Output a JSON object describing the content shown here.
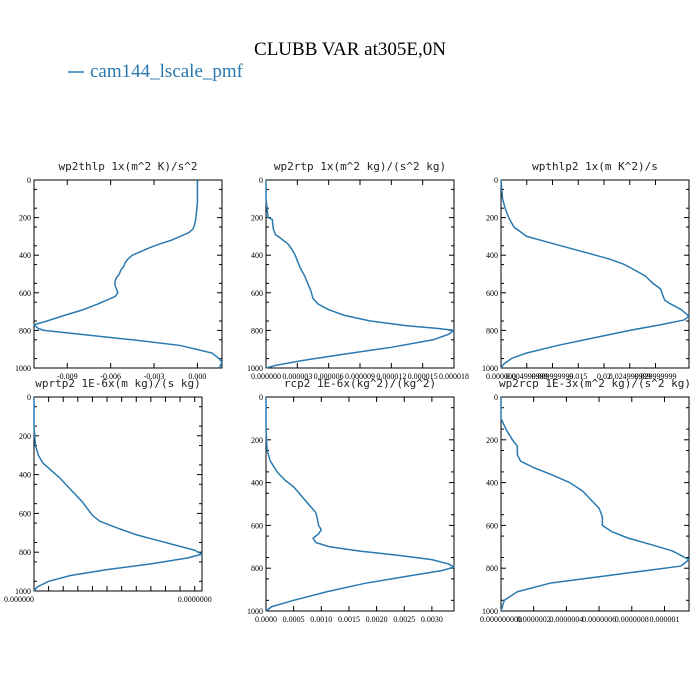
{
  "figure": {
    "title": "CLUBB VAR at305E,0N",
    "legend": [
      {
        "name": "cam144_lscale_pmf",
        "color": "#2a7ab0"
      }
    ]
  },
  "chart_data": [
    {
      "type": "line",
      "title": "wp2thlp  1x(m^2 K)/s^2",
      "xlim": [
        -0.0113,
        0.0017
      ],
      "ylim": [
        1000,
        0
      ],
      "xticks": [
        "-0.009",
        "-0.006",
        "-0.003",
        "0.000"
      ],
      "xtick_values": [
        -0.009,
        -0.006,
        -0.003,
        0.0
      ],
      "yticks": [
        "0",
        "200",
        "400",
        "600",
        "800",
        "1000"
      ],
      "series": [
        {
          "name": "cam144_lscale_pmf",
          "points": [
            [
              0.0,
              0
            ],
            [
              0.0,
              50
            ],
            [
              0.0,
              120
            ],
            [
              -0.0001,
              200
            ],
            [
              -0.0002,
              240
            ],
            [
              -0.0003,
              260
            ],
            [
              -0.0006,
              280
            ],
            [
              -0.0012,
              300
            ],
            [
              -0.0018,
              320
            ],
            [
              -0.0026,
              340
            ],
            [
              -0.0033,
              360
            ],
            [
              -0.0039,
              380
            ],
            [
              -0.0045,
              400
            ],
            [
              -0.0048,
              420
            ],
            [
              -0.005,
              440
            ],
            [
              -0.0051,
              460
            ],
            [
              -0.0053,
              480
            ],
            [
              -0.0054,
              500
            ],
            [
              -0.0056,
              520
            ],
            [
              -0.0057,
              540
            ],
            [
              -0.0057,
              560
            ],
            [
              -0.0056,
              580
            ],
            [
              -0.0055,
              600
            ],
            [
              -0.0057,
              620
            ],
            [
              -0.0063,
              640
            ],
            [
              -0.0069,
              660
            ],
            [
              -0.0079,
              690
            ],
            [
              -0.0092,
              720
            ],
            [
              -0.0104,
              750
            ],
            [
              -0.0113,
              770
            ],
            [
              -0.011,
              790
            ],
            [
              -0.0106,
              800
            ],
            [
              -0.0082,
              820
            ],
            [
              -0.0045,
              850
            ],
            [
              -0.0012,
              880
            ],
            [
              0.001,
              920
            ],
            [
              0.0015,
              950
            ],
            [
              0.0017,
              970
            ],
            [
              0.0015,
              1000
            ]
          ]
        }
      ]
    },
    {
      "type": "line",
      "title": "wp2rtp  1x(m^2 kg)/(s^2 kg)",
      "xlim": [
        0,
        1.8e-05
      ],
      "ylim": [
        1000,
        0
      ],
      "xticks": [
        "0.000000",
        "0.000003",
        "0.000006",
        "0.000009",
        "0.000012",
        "0.000015",
        "0.000018"
      ],
      "xtick_values": [
        0,
        3e-06,
        6e-06,
        9e-06,
        1.2e-05,
        1.5e-05,
        1.8e-05
      ],
      "yticks": [
        "0",
        "200",
        "400",
        "600",
        "800",
        "1000"
      ],
      "series": [
        {
          "name": "cam144_lscale_pmf",
          "points": [
            [
              0.0,
              0
            ],
            [
              0.0,
              100
            ],
            [
              2e-07,
              200
            ],
            [
              6e-07,
              210
            ],
            [
              7e-07,
              260
            ],
            [
              9e-07,
              290
            ],
            [
              1.4e-06,
              310
            ],
            [
              2.1e-06,
              340
            ],
            [
              2.5e-06,
              370
            ],
            [
              2.8e-06,
              400
            ],
            [
              3e-06,
              430
            ],
            [
              3.3e-06,
              470
            ],
            [
              3.7e-06,
              510
            ],
            [
              4e-06,
              550
            ],
            [
              4.3e-06,
              590
            ],
            [
              4.5e-06,
              630
            ],
            [
              5e-06,
              660
            ],
            [
              6e-06,
              690
            ],
            [
              7.5e-06,
              720
            ],
            [
              1e-05,
              750
            ],
            [
              1.35e-05,
              775
            ],
            [
              1.65e-05,
              790
            ],
            [
              1.8e-05,
              800
            ],
            [
              1.75e-05,
              820
            ],
            [
              1.6e-05,
              850
            ],
            [
              1.2e-05,
              890
            ],
            [
              7e-06,
              930
            ],
            [
              3.5e-06,
              960
            ],
            [
              1e-06,
              985
            ],
            [
              0.0,
              1000
            ]
          ]
        }
      ]
    },
    {
      "type": "line",
      "title": "wpthlp2  1x(m K^2)/s",
      "xlim": [
        0,
        0.0365
      ],
      "ylim": [
        1000,
        0
      ],
      "xticks": [
        "0.000000",
        "0.004999999",
        "0.009999999",
        "0.015",
        "0.02",
        "0.024999999",
        "0.029999999"
      ],
      "xtick_values": [
        0,
        0.005,
        0.01,
        0.015,
        0.02,
        0.025,
        0.03
      ],
      "yticks": [
        "0",
        "200",
        "400",
        "600",
        "800",
        "1000"
      ],
      "series": [
        {
          "name": "cam144_lscale_pmf",
          "points": [
            [
              0.0,
              0
            ],
            [
              0.0003,
              100
            ],
            [
              0.0008,
              150
            ],
            [
              0.0015,
              200
            ],
            [
              0.0025,
              250
            ],
            [
              0.005,
              300
            ],
            [
              0.009,
              330
            ],
            [
              0.013,
              360
            ],
            [
              0.017,
              390
            ],
            [
              0.021,
              420
            ],
            [
              0.024,
              450
            ],
            [
              0.026,
              480
            ],
            [
              0.028,
              510
            ],
            [
              0.0295,
              550
            ],
            [
              0.031,
              580
            ],
            [
              0.0315,
              620
            ],
            [
              0.0318,
              640
            ],
            [
              0.033,
              660
            ],
            [
              0.035,
              690
            ],
            [
              0.0365,
              725
            ],
            [
              0.0355,
              745
            ],
            [
              0.031,
              770
            ],
            [
              0.025,
              800
            ],
            [
              0.018,
              840
            ],
            [
              0.011,
              880
            ],
            [
              0.005,
              920
            ],
            [
              0.002,
              950
            ],
            [
              0.0005,
              980
            ],
            [
              0.0,
              1000
            ]
          ]
        }
      ]
    },
    {
      "type": "line",
      "title": "wprtp2  1E-6x(m kg)/(s kg)",
      "xlim": [
        0,
        1.15e-05
      ],
      "ylim": [
        1000,
        0
      ],
      "xticks": [
        "0.000000",
        "",
        "",
        "",
        "",
        "",
        "",
        "",
        "",
        "",
        "",
        "0.0000000"
      ],
      "xtick_values": [
        0,
        1e-06,
        2e-06,
        3e-06,
        4e-06,
        5e-06,
        6e-06,
        7e-06,
        8e-06,
        9e-06,
        1e-05,
        1.1e-05
      ],
      "yticks": [
        "0",
        "200",
        "400",
        "600",
        "800",
        "1000"
      ],
      "series": [
        {
          "name": "cam144_lscale_pmf",
          "points": [
            [
              0.0,
              0
            ],
            [
              0.0,
              150
            ],
            [
              1e-07,
              250
            ],
            [
              3e-07,
              300
            ],
            [
              6e-07,
              340
            ],
            [
              1.2e-06,
              380
            ],
            [
              1.8e-06,
              420
            ],
            [
              2.3e-06,
              460
            ],
            [
              2.8e-06,
              500
            ],
            [
              3.3e-06,
              540
            ],
            [
              3.7e-06,
              580
            ],
            [
              4e-06,
              610
            ],
            [
              4.5e-06,
              640
            ],
            [
              5.5e-06,
              670
            ],
            [
              7e-06,
              710
            ],
            [
              8.5e-06,
              740
            ],
            [
              1e-05,
              770
            ],
            [
              1.1e-05,
              790
            ],
            [
              1.15e-05,
              810
            ],
            [
              1.05e-05,
              830
            ],
            [
              8e-06,
              860
            ],
            [
              5e-06,
              890
            ],
            [
              2.5e-06,
              920
            ],
            [
              1e-06,
              950
            ],
            [
              2e-07,
              980
            ],
            [
              0.0,
              1000
            ]
          ]
        }
      ]
    },
    {
      "type": "line",
      "title": "rcp2  1E-6x(kg^2)/(kg^2)",
      "xlim": [
        0,
        0.0034
      ],
      "ylim": [
        1000,
        0
      ],
      "xticks": [
        "0.0000",
        "0.0005",
        "0.0010",
        "0.0015",
        "0.0020",
        "0.0025",
        "0.0030"
      ],
      "xtick_values": [
        0,
        0.0005,
        0.001,
        0.0015,
        0.002,
        0.0025,
        0.003
      ],
      "yticks": [
        "0",
        "200",
        "400",
        "600",
        "800",
        "1000"
      ],
      "series": [
        {
          "name": "cam144_lscale_pmf",
          "points": [
            [
              0.0,
              0
            ],
            [
              0.0,
              150
            ],
            [
              2e-05,
              250
            ],
            [
              8e-05,
              300
            ],
            [
              0.0002,
              350
            ],
            [
              0.00035,
              390
            ],
            [
              0.0005,
              420
            ],
            [
              0.0006,
              450
            ],
            [
              0.0007,
              480
            ],
            [
              0.0008,
              510
            ],
            [
              0.0009,
              540
            ],
            [
              0.00093,
              570
            ],
            [
              0.00095,
              600
            ],
            [
              0.001,
              620
            ],
            [
              0.00095,
              640
            ],
            [
              0.00085,
              660
            ],
            [
              0.0009,
              680
            ],
            [
              0.00115,
              700
            ],
            [
              0.0017,
              720
            ],
            [
              0.0024,
              740
            ],
            [
              0.003,
              760
            ],
            [
              0.0033,
              780
            ],
            [
              0.0034,
              795
            ],
            [
              0.0032,
              810
            ],
            [
              0.0025,
              840
            ],
            [
              0.0018,
              870
            ],
            [
              0.0011,
              910
            ],
            [
              0.0005,
              950
            ],
            [
              0.0001,
              980
            ],
            [
              0.0,
              1000
            ]
          ]
        }
      ]
    },
    {
      "type": "line",
      "title": "wp2rcp  1E-3x(m^2 kg)/(s^2 kg)",
      "xlim": [
        0,
        1.15e-06
      ],
      "ylim": [
        1000,
        0
      ],
      "xticks": [
        "0.000000000",
        "0.0000002",
        "0.0000004",
        "0.0000006",
        "0.0000008",
        "0.000001"
      ],
      "xtick_values": [
        0,
        2e-07,
        4e-07,
        6e-07,
        8e-07,
        1e-06
      ],
      "yticks": [
        "0",
        "200",
        "400",
        "600",
        "800",
        "1000"
      ],
      "series": [
        {
          "name": "cam144_lscale_pmf",
          "points": [
            [
              0.0,
              0
            ],
            [
              0.0,
              100
            ],
            [
              3e-08,
              150
            ],
            [
              7e-08,
              200
            ],
            [
              1e-07,
              230
            ],
            [
              1e-07,
              270
            ],
            [
              1.2e-07,
              300
            ],
            [
              2e-07,
              330
            ],
            [
              3e-07,
              360
            ],
            [
              4.2e-07,
              400
            ],
            [
              5e-07,
              440
            ],
            [
              5.5e-07,
              480
            ],
            [
              6e-07,
              520
            ],
            [
              6.2e-07,
              560
            ],
            [
              6.2e-07,
              600
            ],
            [
              6.8e-07,
              630
            ],
            [
              7.8e-07,
              660
            ],
            [
              9.2e-07,
              690
            ],
            [
              1.05e-06,
              720
            ],
            [
              1.15e-06,
              760
            ],
            [
              1.1e-06,
              790
            ],
            [
              9e-07,
              810
            ],
            [
              6e-07,
              840
            ],
            [
              3e-07,
              870
            ],
            [
              1e-07,
              910
            ],
            [
              2e-08,
              950
            ],
            [
              0.0,
              1000
            ]
          ]
        }
      ]
    }
  ]
}
